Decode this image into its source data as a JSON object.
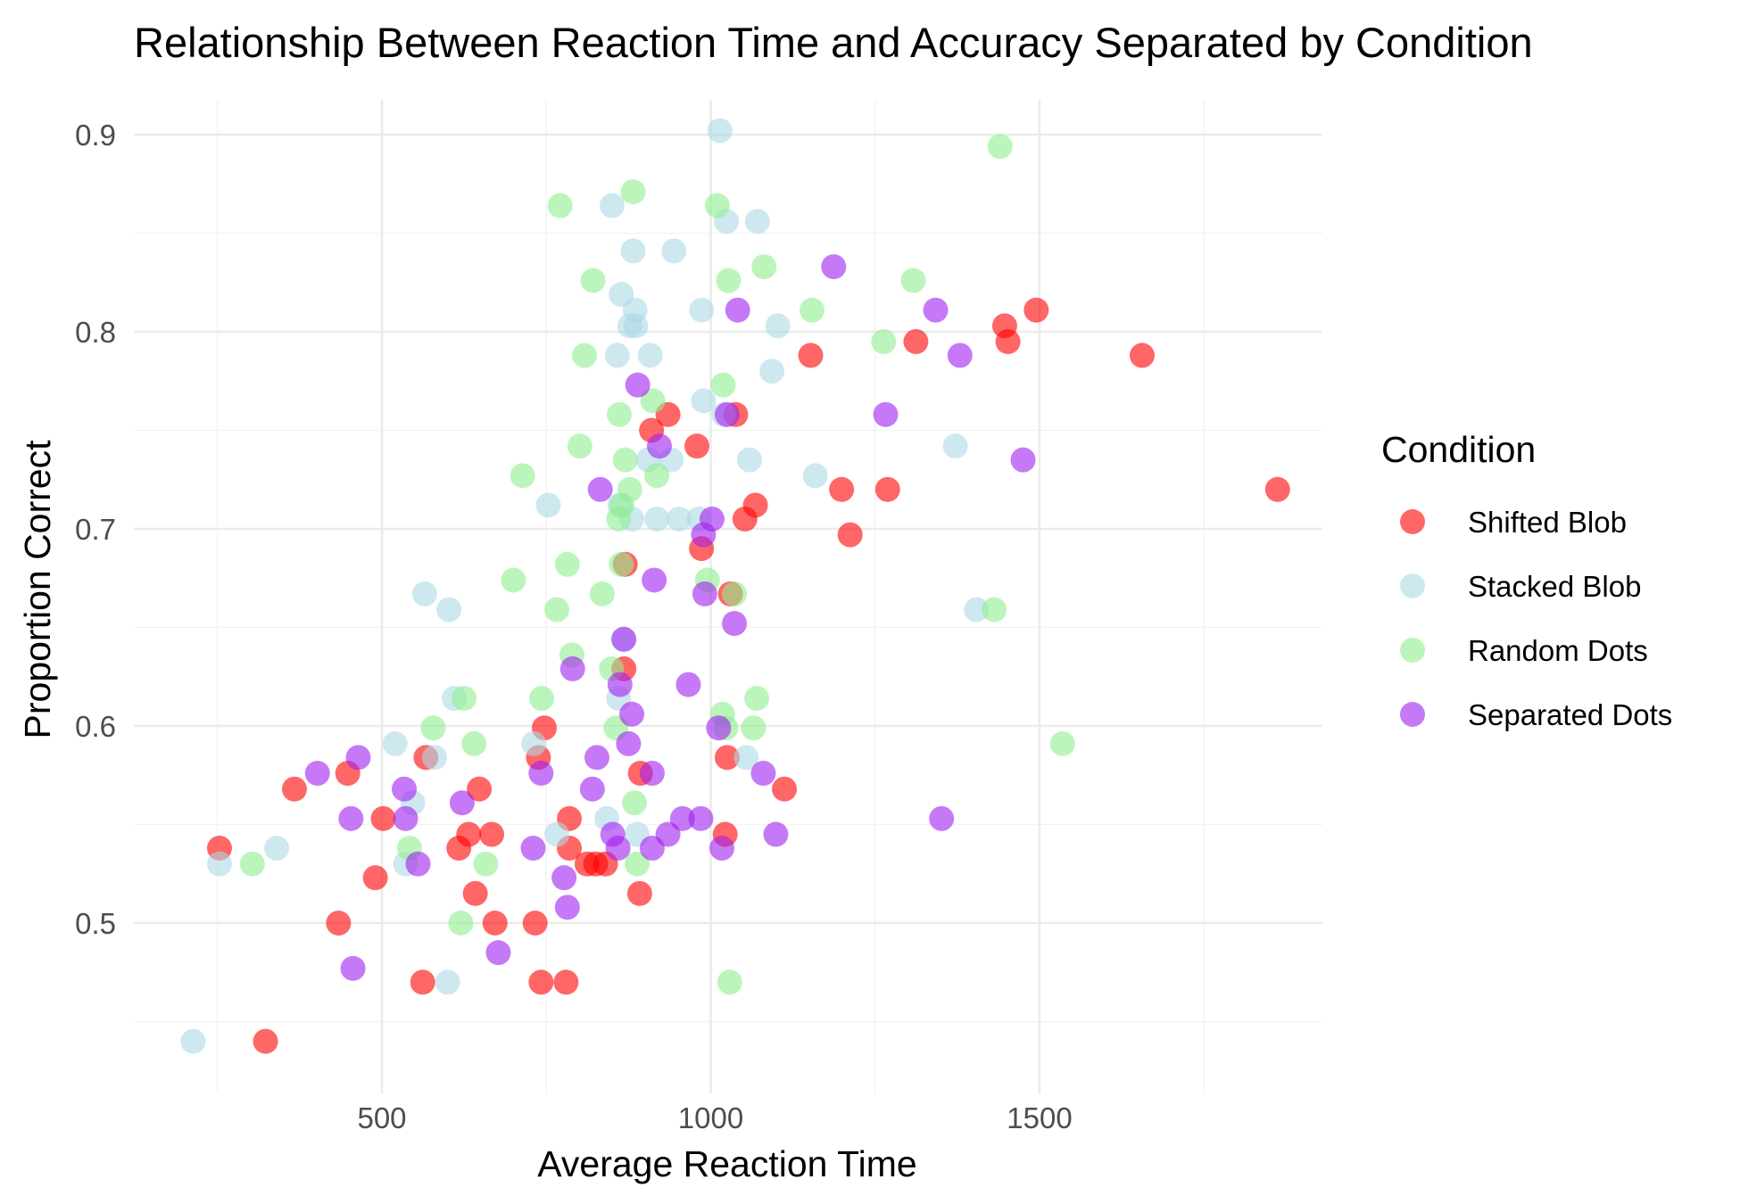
{
  "chart_data": {
    "type": "scatter",
    "title": "Relationship Between Reaction Time and Accuracy Separated by Condition",
    "xlabel": "Average Reaction Time",
    "ylabel": "Proportion Correct",
    "xlim": [
      130,
      1950
    ],
    "ylim": [
      0.42,
      0.92
    ],
    "x_ticks": [
      500,
      1000,
      1500
    ],
    "y_ticks": [
      0.5,
      0.6,
      0.7,
      0.8,
      0.9
    ],
    "x_tick_labels": [
      "500",
      "1000",
      "1500"
    ],
    "y_tick_labels": [
      "0.5",
      "0.6",
      "0.7",
      "0.8",
      "0.9"
    ],
    "grid": true,
    "legend": {
      "title": "Condition",
      "placement": "right"
    },
    "series": [
      {
        "name": "Shifted Blob",
        "color": "#ff0000",
        "x": [
          253,
          323,
          367,
          434,
          448,
          490,
          502,
          562,
          567,
          617,
          632,
          642,
          648,
          667,
          672,
          733,
          738,
          742,
          747,
          780,
          785,
          785,
          812,
          825,
          840,
          868,
          870,
          892,
          893,
          910,
          935,
          979,
          986,
          1022,
          1025,
          1030,
          1038,
          1052,
          1068,
          1112,
          1152,
          1199,
          1212,
          1269,
          1312,
          1447,
          1452,
          1495,
          1656,
          1862
        ],
        "y": [
          0.538,
          0.44,
          0.568,
          0.5,
          0.576,
          0.523,
          0.553,
          0.47,
          0.584,
          0.538,
          0.545,
          0.515,
          0.568,
          0.545,
          0.5,
          0.5,
          0.584,
          0.47,
          0.599,
          0.47,
          0.538,
          0.553,
          0.53,
          0.53,
          0.53,
          0.629,
          0.682,
          0.515,
          0.576,
          0.75,
          0.758,
          0.742,
          0.69,
          0.545,
          0.584,
          0.667,
          0.758,
          0.705,
          0.712,
          0.568,
          0.788,
          0.72,
          0.697,
          0.72,
          0.795,
          0.803,
          0.795,
          0.811,
          0.788,
          0.72
        ]
      },
      {
        "name": "Stacked Blob",
        "color": "#add8e6",
        "x": [
          213,
          253,
          340,
          520,
          536,
          547,
          565,
          580,
          600,
          602,
          610,
          731,
          753,
          766,
          842,
          850,
          858,
          860,
          862,
          864,
          867,
          877,
          880,
          882,
          885,
          886,
          888,
          905,
          908,
          918,
          940,
          944,
          952,
          982,
          986,
          989,
          1014,
          1020,
          1024,
          1054,
          1059,
          1071,
          1093,
          1102,
          1159,
          1372,
          1404
        ],
        "y": [
          0.44,
          0.53,
          0.538,
          0.591,
          0.53,
          0.561,
          0.667,
          0.584,
          0.47,
          0.659,
          0.614,
          0.591,
          0.712,
          0.545,
          0.553,
          0.864,
          0.788,
          0.614,
          0.712,
          0.819,
          0.644,
          0.803,
          0.705,
          0.841,
          0.811,
          0.803,
          0.545,
          0.735,
          0.788,
          0.705,
          0.735,
          0.841,
          0.705,
          0.705,
          0.811,
          0.765,
          0.902,
          0.758,
          0.856,
          0.584,
          0.735,
          0.856,
          0.78,
          0.803,
          0.727,
          0.742,
          0.659
        ]
      },
      {
        "name": "Random Dots",
        "color": "#90ee90",
        "x": [
          303,
          542,
          578,
          620,
          625,
          640,
          658,
          700,
          714,
          743,
          766,
          771,
          782,
          789,
          801,
          808,
          821,
          835,
          849,
          856,
          860,
          861,
          864,
          865,
          870,
          877,
          882,
          884,
          888,
          912,
          918,
          995,
          1010,
          1018,
          1019,
          1023,
          1027,
          1029,
          1036,
          1065,
          1070,
          1081,
          1154,
          1263,
          1308,
          1431,
          1440,
          1535
        ],
        "y": [
          0.53,
          0.538,
          0.599,
          0.5,
          0.614,
          0.591,
          0.53,
          0.674,
          0.727,
          0.614,
          0.659,
          0.864,
          0.682,
          0.636,
          0.742,
          0.788,
          0.826,
          0.667,
          0.629,
          0.599,
          0.705,
          0.758,
          0.682,
          0.712,
          0.735,
          0.72,
          0.871,
          0.561,
          0.53,
          0.765,
          0.727,
          0.674,
          0.864,
          0.606,
          0.773,
          0.599,
          0.826,
          0.47,
          0.667,
          0.599,
          0.614,
          0.833,
          0.811,
          0.795,
          0.826,
          0.659,
          0.894,
          0.591
        ]
      },
      {
        "name": "Separated Dots",
        "color": "#a020f0",
        "x": [
          402,
          453,
          456,
          464,
          534,
          536,
          555,
          622,
          677,
          730,
          742,
          777,
          782,
          790,
          820,
          827,
          832,
          851,
          859,
          862,
          868,
          875,
          880,
          889,
          911,
          911,
          914,
          922,
          935,
          957,
          966,
          985,
          989,
          991,
          1002,
          1012,
          1017,
          1025,
          1036,
          1041,
          1080,
          1099,
          1187,
          1266,
          1342,
          1351,
          1379,
          1475
        ],
        "y": [
          0.576,
          0.553,
          0.477,
          0.584,
          0.568,
          0.553,
          0.53,
          0.561,
          0.485,
          0.538,
          0.576,
          0.523,
          0.508,
          0.629,
          0.568,
          0.584,
          0.72,
          0.545,
          0.538,
          0.621,
          0.644,
          0.591,
          0.606,
          0.773,
          0.538,
          0.576,
          0.674,
          0.742,
          0.545,
          0.553,
          0.621,
          0.553,
          0.697,
          0.667,
          0.705,
          0.599,
          0.538,
          0.758,
          0.652,
          0.811,
          0.576,
          0.545,
          0.833,
          0.758,
          0.811,
          0.553,
          0.788,
          0.735
        ]
      }
    ]
  }
}
